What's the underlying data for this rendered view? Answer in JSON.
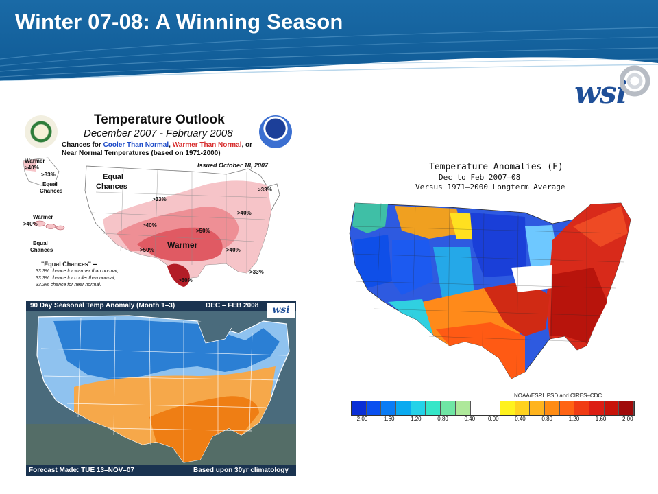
{
  "slide": {
    "title": "Winter 07-08: A Winning Season"
  },
  "logo": {
    "text": "wsi",
    "icon": "wsi-swirl-icon"
  },
  "outlook": {
    "title": "Temperature Outlook",
    "subtitle": "December 2007 - February 2008",
    "desc_prefix": "Chances for ",
    "cooler": "Cooler Than Normal",
    "sep": ", ",
    "warmer": "Warmer Than Normal",
    "desc_suffix": ", or",
    "desc_line2": "Near Normal Temperatures (based on 1971-2000)",
    "issued": "Issued October 18, 2007",
    "labels": {
      "alaska_warmer": "Warmer",
      "alaska_40": ">40%",
      "alaska_33": ">33%",
      "alaska_equal_1": "Equal",
      "alaska_equal_2": "Chances",
      "hawaii_warmer": "Warmer",
      "hawaii_40": ">40%",
      "hawaii_equal_1": "Equal",
      "hawaii_equal_2": "Chances",
      "main_equal_1": "Equal",
      "main_equal_2": "Chances",
      "main_warmer": "Warmer",
      "p33_a": ">33%",
      "p40_a": ">40%",
      "p50_a": ">50%",
      "p50_b": ">50%",
      "p60": ">60%",
      "p40_b": ">40%",
      "p40_c": ">40%",
      "p33_b": ">33%",
      "p33_c": ">33%"
    },
    "ec_note": {
      "head": "\"Equal Chances\" --",
      "line1": "33.3% chance for warmer than normal;",
      "line2": "33.3% chance for cooler than normal;",
      "line3": "33.3% chance for near normal."
    },
    "colors": {
      "tint1": "#f6c4c8",
      "tint2": "#ee8f95",
      "tint3": "#e05a63",
      "tint4": "#b31d27"
    }
  },
  "wsi_forecast": {
    "header_left": "90 Day Seasonal Temp Anomaly (Month 1–3)",
    "header_right": "DEC – FEB 2008",
    "footer_left": "Forecast Made: TUE 13–NOV–07",
    "footer_right": "Based upon 30yr climatology",
    "mini_logo": "wsi",
    "colors": {
      "cold": "#2b7fd4",
      "cool": "#8fc2ef",
      "warm": "#f6a84a",
      "hot": "#ef7e14"
    }
  },
  "anomalies": {
    "title": "Temperature Anomalies (F)",
    "subtitle": "Dec to Feb 2007–08",
    "subtitle2": "Versus 1971–2000 Longterm Average",
    "credit": "NOAA/ESRL PSD and CIRES–CDC",
    "scale_labels": [
      "−2.00",
      "−1.60",
      "−1.20",
      "−0.80",
      "−0.40",
      "0.00",
      "0.40",
      "0.80",
      "1.20",
      "1.60",
      "2.00"
    ],
    "scale_colors": [
      "#0a2fd6",
      "#0a50f0",
      "#0a7cf5",
      "#0aaaf0",
      "#24d2e8",
      "#35e6c8",
      "#6fe6a4",
      "#aee89a",
      "#ffffff",
      "#ffffff",
      "#fff21e",
      "#ffd21e",
      "#ffb41e",
      "#ff8c14",
      "#ff6414",
      "#f03c14",
      "#dc1e14",
      "#c8140a",
      "#a00a0a"
    ]
  }
}
